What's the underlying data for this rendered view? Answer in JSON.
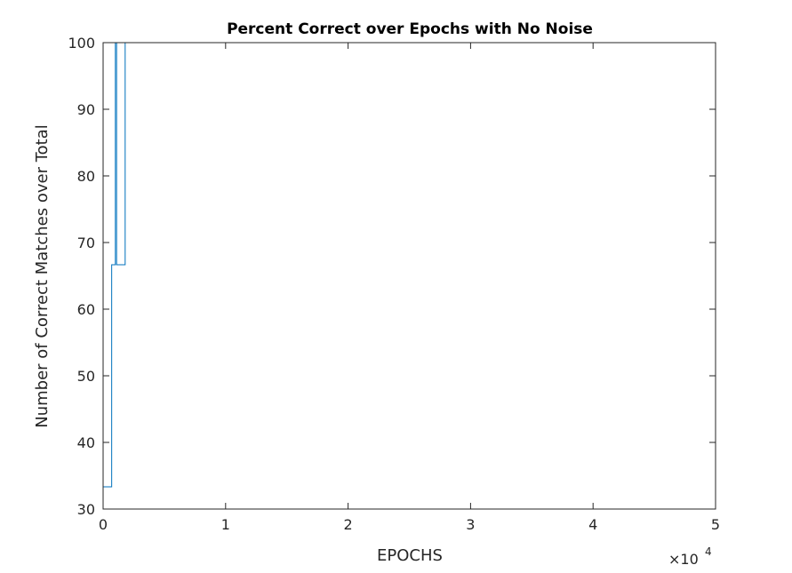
{
  "chart_data": {
    "type": "line",
    "title": "Percent Correct over Epochs with No Noise",
    "xlabel": "EPOCHS",
    "ylabel": "Number of Correct Matches over Total",
    "x_multiplier_label": "×10",
    "x_multiplier_exponent": "4",
    "xlim": [
      0,
      5
    ],
    "ylim": [
      30,
      100
    ],
    "xticks": [
      "0",
      "1",
      "2",
      "3",
      "4",
      "5"
    ],
    "yticks": [
      "30",
      "40",
      "50",
      "60",
      "70",
      "80",
      "90",
      "100"
    ],
    "grid": false,
    "series": [
      {
        "color": "#0072BD",
        "x": [
          0,
          0.0,
          0.01,
          0.01,
          0.07,
          0.07,
          0.1,
          0.1,
          0.11,
          0.11,
          0.18,
          0.18,
          5
        ],
        "y": [
          66.67,
          33.33,
          33.33,
          33.33,
          33.33,
          66.67,
          66.67,
          100,
          100,
          66.67,
          66.67,
          100,
          100
        ]
      }
    ]
  }
}
